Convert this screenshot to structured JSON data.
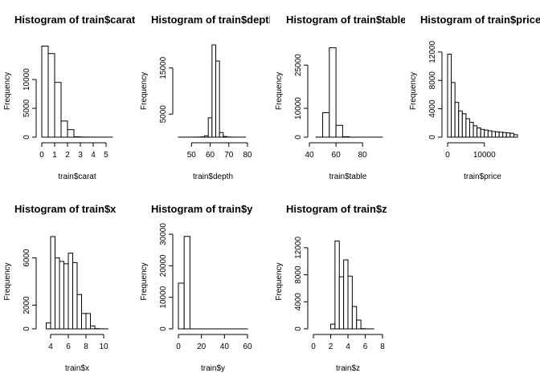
{
  "chart_data": [
    {
      "type": "bar",
      "title": "Histogram of train$carat",
      "xlabel": "train$carat",
      "ylabel": "Frequency",
      "xlim": [
        0,
        5.5
      ],
      "ylim": [
        0,
        16000
      ],
      "xticks": [
        "0",
        "1",
        "2",
        "3",
        "4",
        "5"
      ],
      "yticks": [
        "0",
        "5000",
        "10000"
      ],
      "bins": [
        {
          "x0": 0.0,
          "x1": 0.5,
          "y": 15800
        },
        {
          "x0": 0.5,
          "x1": 1.0,
          "y": 14500
        },
        {
          "x0": 1.0,
          "x1": 1.5,
          "y": 9500
        },
        {
          "x0": 1.5,
          "x1": 2.0,
          "y": 2800
        },
        {
          "x0": 2.0,
          "x1": 2.5,
          "y": 1300
        },
        {
          "x0": 2.5,
          "x1": 3.0,
          "y": 60
        },
        {
          "x0": 3.0,
          "x1": 3.5,
          "y": 20
        },
        {
          "x0": 3.5,
          "x1": 4.0,
          "y": 10
        },
        {
          "x0": 4.0,
          "x1": 4.5,
          "y": 5
        },
        {
          "x0": 4.5,
          "x1": 5.0,
          "y": 3
        },
        {
          "x0": 5.0,
          "x1": 5.5,
          "y": 1
        }
      ]
    },
    {
      "type": "bar",
      "title": "Histogram of train$depth",
      "xlabel": "train$depth",
      "ylabel": "Frequency",
      "xlim": [
        43,
        80
      ],
      "ylim": [
        0,
        20000
      ],
      "xticks": [
        "50",
        "60",
        "70",
        "80"
      ],
      "yticks": [
        "5000",
        "15000"
      ],
      "bins": [
        {
          "x0": 43,
          "x1": 45,
          "y": 2
        },
        {
          "x0": 45,
          "x1": 47,
          "y": 3
        },
        {
          "x0": 47,
          "x1": 49,
          "y": 5
        },
        {
          "x0": 49,
          "x1": 51,
          "y": 8
        },
        {
          "x0": 51,
          "x1": 53,
          "y": 12
        },
        {
          "x0": 53,
          "x1": 55,
          "y": 25
        },
        {
          "x0": 55,
          "x1": 57,
          "y": 60
        },
        {
          "x0": 57,
          "x1": 59,
          "y": 300
        },
        {
          "x0": 59,
          "x1": 61,
          "y": 4200
        },
        {
          "x0": 61,
          "x1": 63,
          "y": 20000
        },
        {
          "x0": 63,
          "x1": 65,
          "y": 16500
        },
        {
          "x0": 65,
          "x1": 67,
          "y": 1000
        },
        {
          "x0": 67,
          "x1": 69,
          "y": 150
        },
        {
          "x0": 69,
          "x1": 71,
          "y": 40
        },
        {
          "x0": 71,
          "x1": 73,
          "y": 15
        },
        {
          "x0": 73,
          "x1": 75,
          "y": 5
        },
        {
          "x0": 75,
          "x1": 77,
          "y": 2
        },
        {
          "x0": 77,
          "x1": 79,
          "y": 1
        }
      ]
    },
    {
      "type": "bar",
      "title": "Histogram of train$table",
      "xlabel": "train$table",
      "ylabel": "Frequency",
      "xlim": [
        43,
        95
      ],
      "ylim": [
        0,
        32000
      ],
      "xticks": [
        "40",
        "60",
        "80"
      ],
      "yticks": [
        "0",
        "10000",
        "25000"
      ],
      "bins": [
        {
          "x0": 45,
          "x1": 50,
          "y": 20
        },
        {
          "x0": 50,
          "x1": 55,
          "y": 8500
        },
        {
          "x0": 55,
          "x1": 60,
          "y": 31000
        },
        {
          "x0": 60,
          "x1": 65,
          "y": 4100
        },
        {
          "x0": 65,
          "x1": 70,
          "y": 150
        },
        {
          "x0": 70,
          "x1": 75,
          "y": 10
        },
        {
          "x0": 75,
          "x1": 80,
          "y": 3
        },
        {
          "x0": 80,
          "x1": 85,
          "y": 1
        },
        {
          "x0": 85,
          "x1": 90,
          "y": 1
        },
        {
          "x0": 90,
          "x1": 95,
          "y": 1
        }
      ]
    },
    {
      "type": "bar",
      "title": "Histogram of train$price",
      "xlabel": "train$price",
      "ylabel": "Frequency",
      "xlim": [
        0,
        19000
      ],
      "ylim": [
        0,
        13000
      ],
      "xticks": [
        "0",
        "10000"
      ],
      "yticks": [
        "0",
        "4000",
        "8000",
        "12000"
      ],
      "bins": [
        {
          "x0": 0,
          "x1": 1000,
          "y": 11700
        },
        {
          "x0": 1000,
          "x1": 2000,
          "y": 7700
        },
        {
          "x0": 2000,
          "x1": 3000,
          "y": 4900
        },
        {
          "x0": 3000,
          "x1": 4000,
          "y": 3700
        },
        {
          "x0": 4000,
          "x1": 5000,
          "y": 3300
        },
        {
          "x0": 5000,
          "x1": 6000,
          "y": 2600
        },
        {
          "x0": 6000,
          "x1": 7000,
          "y": 2100
        },
        {
          "x0": 7000,
          "x1": 8000,
          "y": 1600
        },
        {
          "x0": 8000,
          "x1": 9000,
          "y": 1300
        },
        {
          "x0": 9000,
          "x1": 10000,
          "y": 1100
        },
        {
          "x0": 10000,
          "x1": 11000,
          "y": 1000
        },
        {
          "x0": 11000,
          "x1": 12000,
          "y": 900
        },
        {
          "x0": 12000,
          "x1": 13000,
          "y": 800
        },
        {
          "x0": 13000,
          "x1": 14000,
          "y": 750
        },
        {
          "x0": 14000,
          "x1": 15000,
          "y": 700
        },
        {
          "x0": 15000,
          "x1": 16000,
          "y": 650
        },
        {
          "x0": 16000,
          "x1": 17000,
          "y": 600
        },
        {
          "x0": 17000,
          "x1": 18000,
          "y": 550
        },
        {
          "x0": 18000,
          "x1": 19000,
          "y": 350
        }
      ]
    },
    {
      "type": "bar",
      "title": "Histogram of train$x",
      "xlabel": "train$x",
      "ylabel": "Frequency",
      "xlim": [
        3,
        11
      ],
      "ylim": [
        0,
        8000
      ],
      "xticks": [
        "4",
        "6",
        "8",
        "10"
      ],
      "yticks": [
        "0",
        "2000",
        "6000"
      ],
      "bins": [
        {
          "x0": 3.5,
          "x1": 4.0,
          "y": 500
        },
        {
          "x0": 4.0,
          "x1": 4.5,
          "y": 7800
        },
        {
          "x0": 4.5,
          "x1": 5.0,
          "y": 6000
        },
        {
          "x0": 5.0,
          "x1": 5.5,
          "y": 5700
        },
        {
          "x0": 5.5,
          "x1": 6.0,
          "y": 5500
        },
        {
          "x0": 6.0,
          "x1": 6.5,
          "y": 6400
        },
        {
          "x0": 6.5,
          "x1": 7.0,
          "y": 5600
        },
        {
          "x0": 7.0,
          "x1": 7.5,
          "y": 2900
        },
        {
          "x0": 7.5,
          "x1": 8.0,
          "y": 1300
        },
        {
          "x0": 8.0,
          "x1": 8.5,
          "y": 1300
        },
        {
          "x0": 8.5,
          "x1": 9.0,
          "y": 250
        },
        {
          "x0": 9.0,
          "x1": 9.5,
          "y": 20
        },
        {
          "x0": 9.5,
          "x1": 10.0,
          "y": 5
        },
        {
          "x0": 10.0,
          "x1": 10.5,
          "y": 2
        }
      ]
    },
    {
      "type": "bar",
      "title": "Histogram of train$y",
      "xlabel": "train$y",
      "ylabel": "Frequency",
      "xlim": [
        0,
        60
      ],
      "ylim": [
        0,
        30000
      ],
      "xticks": [
        "0",
        "20",
        "40",
        "60"
      ],
      "yticks": [
        "0",
        "10000",
        "20000",
        "30000"
      ],
      "bins": [
        {
          "x0": 0,
          "x1": 5,
          "y": 14500
        },
        {
          "x0": 5,
          "x1": 10,
          "y": 29300
        },
        {
          "x0": 10,
          "x1": 15,
          "y": 5
        },
        {
          "x0": 15,
          "x1": 20,
          "y": 2
        },
        {
          "x0": 20,
          "x1": 25,
          "y": 1
        },
        {
          "x0": 25,
          "x1": 30,
          "y": 1
        },
        {
          "x0": 30,
          "x1": 35,
          "y": 1
        },
        {
          "x0": 35,
          "x1": 40,
          "y": 1
        },
        {
          "x0": 40,
          "x1": 45,
          "y": 1
        },
        {
          "x0": 45,
          "x1": 50,
          "y": 1
        },
        {
          "x0": 50,
          "x1": 55,
          "y": 1
        },
        {
          "x0": 55,
          "x1": 60,
          "y": 1
        }
      ]
    },
    {
      "type": "bar",
      "title": "Histogram of train$z",
      "xlabel": "train$z",
      "ylabel": "Frequency",
      "xlim": [
        0,
        8
      ],
      "ylim": [
        0,
        14000
      ],
      "xticks": [
        "0",
        "2",
        "4",
        "6",
        "8"
      ],
      "yticks": [
        "0",
        "4000",
        "8000",
        "12000"
      ],
      "bins": [
        {
          "x0": 2.0,
          "x1": 2.5,
          "y": 700
        },
        {
          "x0": 2.5,
          "x1": 3.0,
          "y": 13000
        },
        {
          "x0": 3.0,
          "x1": 3.5,
          "y": 7700
        },
        {
          "x0": 3.5,
          "x1": 4.0,
          "y": 10200
        },
        {
          "x0": 4.0,
          "x1": 4.5,
          "y": 7800
        },
        {
          "x0": 4.5,
          "x1": 5.0,
          "y": 3300
        },
        {
          "x0": 5.0,
          "x1": 5.5,
          "y": 1300
        },
        {
          "x0": 5.5,
          "x1": 6.0,
          "y": 30
        },
        {
          "x0": 6.0,
          "x1": 6.5,
          "y": 5
        },
        {
          "x0": 6.5,
          "x1": 7.0,
          "y": 2
        }
      ]
    }
  ]
}
